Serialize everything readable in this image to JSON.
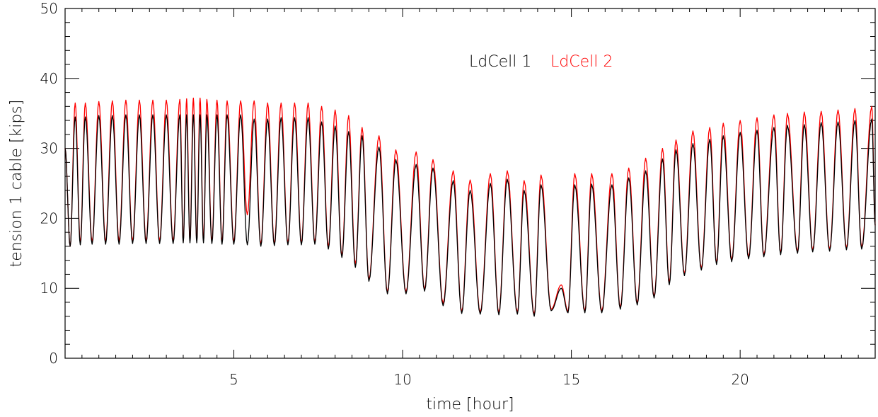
{
  "chart_data": {
    "type": "line",
    "title": "",
    "xlabel": "time [hour]",
    "ylabel": "tension 1 cable [kips]",
    "xlim": [
      0,
      24
    ],
    "ylim": [
      0,
      50
    ],
    "x_ticks": [
      5,
      10,
      15,
      20
    ],
    "y_ticks": [
      0,
      10,
      20,
      30,
      40,
      50
    ],
    "grid": false,
    "legend_position": "top-center",
    "series_note": "oscillating cable tension; peaks and troughs read off the axes",
    "series": [
      {
        "name": "LdCell 1",
        "color": "#000000",
        "peaks": [
          [
            0.3,
            34.5
          ],
          [
            0.6,
            34.5
          ],
          [
            1.0,
            34.7
          ],
          [
            1.4,
            34.7
          ],
          [
            1.8,
            34.8
          ],
          [
            2.2,
            34.8
          ],
          [
            2.6,
            34.8
          ],
          [
            3.0,
            34.8
          ],
          [
            3.4,
            34.8
          ],
          [
            3.6,
            34.8
          ],
          [
            3.8,
            34.8
          ],
          [
            4.0,
            34.8
          ],
          [
            4.2,
            34.8
          ],
          [
            4.5,
            34.8
          ],
          [
            4.8,
            34.8
          ],
          [
            5.2,
            34.8
          ],
          [
            5.6,
            34.2
          ],
          [
            6.0,
            34.2
          ],
          [
            6.4,
            34.4
          ],
          [
            6.8,
            34.4
          ],
          [
            7.2,
            34.4
          ],
          [
            7.6,
            33.8
          ],
          [
            8.0,
            33.2
          ],
          [
            8.4,
            32.4
          ],
          [
            8.8,
            31.8
          ],
          [
            9.3,
            30.2
          ],
          [
            9.8,
            28.4
          ],
          [
            10.4,
            27.7
          ],
          [
            10.9,
            27.2
          ],
          [
            11.5,
            25.4
          ],
          [
            12.0,
            24.0
          ],
          [
            12.6,
            25.0
          ],
          [
            13.1,
            25.6
          ],
          [
            13.6,
            24.0
          ],
          [
            14.1,
            24.8
          ],
          [
            14.7,
            10.0
          ],
          [
            15.1,
            24.8
          ],
          [
            15.6,
            24.9
          ],
          [
            16.2,
            24.8
          ],
          [
            16.7,
            25.8
          ],
          [
            17.2,
            26.8
          ],
          [
            17.7,
            28.5
          ],
          [
            18.1,
            29.8
          ],
          [
            18.6,
            30.7
          ],
          [
            19.1,
            31.3
          ],
          [
            19.5,
            31.8
          ],
          [
            20.0,
            32.3
          ],
          [
            20.5,
            32.6
          ],
          [
            21.0,
            33.0
          ],
          [
            21.4,
            33.3
          ],
          [
            21.9,
            33.4
          ],
          [
            22.4,
            33.7
          ],
          [
            22.9,
            33.8
          ],
          [
            23.4,
            34.0
          ],
          [
            23.9,
            34.2
          ]
        ],
        "troughs": [
          [
            0.15,
            16.0
          ],
          [
            0.45,
            16.2
          ],
          [
            0.8,
            16.3
          ],
          [
            1.2,
            16.3
          ],
          [
            1.6,
            16.3
          ],
          [
            2.0,
            16.4
          ],
          [
            2.4,
            16.4
          ],
          [
            2.8,
            16.4
          ],
          [
            3.2,
            16.4
          ],
          [
            3.5,
            16.5
          ],
          [
            3.7,
            16.5
          ],
          [
            3.9,
            16.5
          ],
          [
            4.1,
            16.5
          ],
          [
            4.35,
            16.4
          ],
          [
            4.65,
            16.3
          ],
          [
            5.0,
            16.3
          ],
          [
            5.4,
            16.2
          ],
          [
            5.8,
            16.0
          ],
          [
            6.2,
            16.1
          ],
          [
            6.6,
            16.2
          ],
          [
            7.0,
            16.2
          ],
          [
            7.4,
            16.3
          ],
          [
            7.8,
            15.6
          ],
          [
            8.2,
            14.4
          ],
          [
            8.6,
            13.0
          ],
          [
            9.0,
            11.0
          ],
          [
            9.55,
            9.2
          ],
          [
            10.1,
            9.2
          ],
          [
            10.65,
            9.6
          ],
          [
            11.2,
            7.5
          ],
          [
            11.75,
            6.4
          ],
          [
            12.3,
            6.3
          ],
          [
            12.85,
            6.2
          ],
          [
            13.4,
            6.3
          ],
          [
            13.9,
            6.0
          ],
          [
            14.4,
            6.8
          ],
          [
            14.9,
            6.5
          ],
          [
            15.4,
            6.5
          ],
          [
            15.9,
            6.5
          ],
          [
            16.45,
            7.0
          ],
          [
            16.95,
            7.6
          ],
          [
            17.45,
            8.6
          ],
          [
            17.9,
            10.5
          ],
          [
            18.35,
            11.8
          ],
          [
            18.85,
            12.6
          ],
          [
            19.3,
            13.4
          ],
          [
            19.75,
            13.8
          ],
          [
            20.25,
            14.2
          ],
          [
            20.7,
            14.5
          ],
          [
            21.2,
            14.8
          ],
          [
            21.7,
            15.0
          ],
          [
            22.15,
            15.2
          ],
          [
            22.65,
            15.3
          ],
          [
            23.15,
            15.5
          ],
          [
            23.6,
            15.6
          ]
        ]
      },
      {
        "name": "LdCell 2",
        "color": "#ff0000",
        "peaks": [
          [
            0.3,
            36.5
          ],
          [
            0.6,
            36.5
          ],
          [
            1.0,
            36.7
          ],
          [
            1.4,
            36.8
          ],
          [
            1.8,
            36.9
          ],
          [
            2.2,
            36.9
          ],
          [
            2.6,
            36.9
          ],
          [
            3.0,
            36.9
          ],
          [
            3.4,
            37.0
          ],
          [
            3.6,
            37.1
          ],
          [
            3.8,
            37.2
          ],
          [
            4.0,
            37.2
          ],
          [
            4.2,
            37.0
          ],
          [
            4.5,
            36.9
          ],
          [
            4.8,
            36.8
          ],
          [
            5.2,
            36.8
          ],
          [
            5.6,
            36.8
          ],
          [
            6.0,
            36.5
          ],
          [
            6.4,
            36.5
          ],
          [
            6.8,
            36.5
          ],
          [
            7.2,
            36.5
          ],
          [
            7.6,
            36.0
          ],
          [
            8.0,
            35.5
          ],
          [
            8.4,
            34.7
          ],
          [
            8.8,
            33.0
          ],
          [
            9.3,
            31.8
          ],
          [
            9.8,
            29.8
          ],
          [
            10.4,
            29.5
          ],
          [
            10.9,
            28.4
          ],
          [
            11.5,
            26.8
          ],
          [
            12.0,
            25.5
          ],
          [
            12.6,
            26.4
          ],
          [
            13.1,
            26.8
          ],
          [
            13.6,
            25.4
          ],
          [
            14.1,
            26.2
          ],
          [
            14.7,
            10.5
          ],
          [
            15.1,
            26.4
          ],
          [
            15.6,
            26.4
          ],
          [
            16.2,
            26.4
          ],
          [
            16.7,
            27.2
          ],
          [
            17.2,
            28.6
          ],
          [
            17.7,
            30.0
          ],
          [
            18.1,
            31.2
          ],
          [
            18.6,
            32.5
          ],
          [
            19.1,
            33.0
          ],
          [
            19.5,
            33.6
          ],
          [
            20.0,
            34.0
          ],
          [
            20.5,
            34.4
          ],
          [
            21.0,
            34.8
          ],
          [
            21.4,
            35.0
          ],
          [
            21.9,
            35.2
          ],
          [
            22.4,
            35.3
          ],
          [
            22.9,
            35.5
          ],
          [
            23.4,
            35.7
          ],
          [
            23.9,
            36.0
          ]
        ],
        "troughs": [
          [
            0.15,
            16.0
          ],
          [
            0.45,
            16.5
          ],
          [
            0.8,
            16.6
          ],
          [
            1.2,
            16.6
          ],
          [
            1.6,
            16.7
          ],
          [
            2.0,
            16.7
          ],
          [
            2.4,
            16.7
          ],
          [
            2.8,
            16.7
          ],
          [
            3.2,
            16.7
          ],
          [
            3.5,
            16.7
          ],
          [
            3.7,
            16.8
          ],
          [
            3.9,
            16.8
          ],
          [
            4.1,
            16.8
          ],
          [
            4.35,
            16.7
          ],
          [
            4.65,
            16.6
          ],
          [
            5.0,
            16.6
          ],
          [
            5.4,
            20.5
          ],
          [
            5.8,
            16.2
          ],
          [
            6.2,
            16.3
          ],
          [
            6.6,
            16.4
          ],
          [
            7.0,
            16.4
          ],
          [
            7.4,
            16.5
          ],
          [
            7.8,
            15.9
          ],
          [
            8.2,
            14.6
          ],
          [
            8.6,
            13.4
          ],
          [
            9.0,
            11.2
          ],
          [
            9.55,
            9.4
          ],
          [
            10.1,
            9.4
          ],
          [
            10.65,
            9.8
          ],
          [
            11.2,
            7.8
          ],
          [
            11.75,
            6.6
          ],
          [
            12.3,
            6.5
          ],
          [
            12.85,
            6.4
          ],
          [
            13.4,
            6.5
          ],
          [
            13.9,
            6.2
          ],
          [
            14.4,
            7.0
          ],
          [
            14.9,
            6.7
          ],
          [
            15.4,
            6.7
          ],
          [
            15.9,
            6.7
          ],
          [
            16.45,
            7.2
          ],
          [
            16.95,
            7.8
          ],
          [
            17.45,
            8.8
          ],
          [
            17.9,
            10.8
          ],
          [
            18.35,
            12.0
          ],
          [
            18.85,
            12.8
          ],
          [
            19.3,
            13.6
          ],
          [
            19.75,
            14.0
          ],
          [
            20.25,
            14.4
          ],
          [
            20.7,
            14.7
          ],
          [
            21.2,
            15.0
          ],
          [
            21.7,
            15.2
          ],
          [
            22.15,
            15.4
          ],
          [
            22.65,
            15.5
          ],
          [
            23.15,
            15.7
          ],
          [
            23.6,
            15.8
          ]
        ]
      }
    ]
  },
  "legend": {
    "items": [
      {
        "label": "LdCell 1",
        "color": "#000000"
      },
      {
        "label": "LdCell 2",
        "color": "#ff0000"
      }
    ]
  }
}
